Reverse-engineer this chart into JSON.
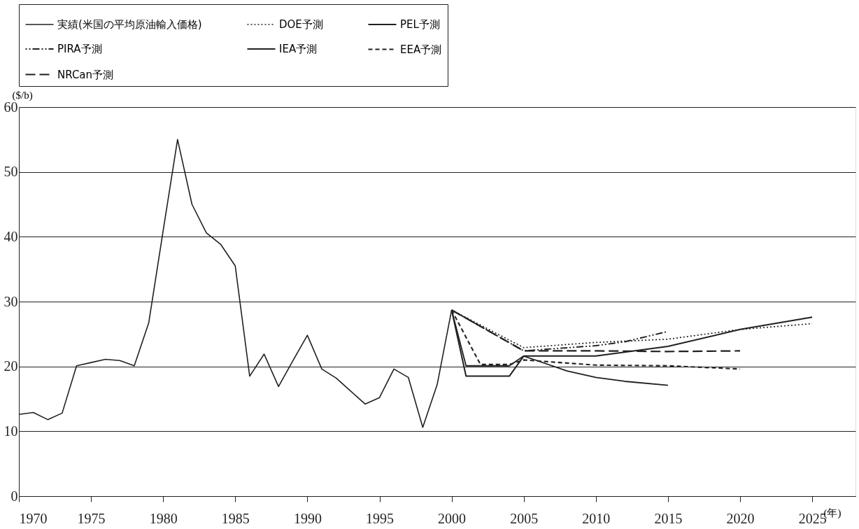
{
  "chart_data": {
    "type": "line",
    "ylabel": "($/b)",
    "xlabel": "(年)",
    "xlim": [
      1970,
      2028
    ],
    "xticks": [
      1970,
      1975,
      1980,
      1985,
      1990,
      1995,
      2000,
      2005,
      2010,
      2015,
      2020,
      2025
    ],
    "ylim": [
      0,
      60
    ],
    "yticks": [
      0,
      10,
      20,
      30,
      40,
      50,
      60
    ],
    "grid": "y",
    "legend": "top",
    "marker": "none",
    "series": [
      {
        "name": "実績(米国の平均原油輸入価格)",
        "color": "#231f20",
        "line_style": "solid",
        "x": [
          1970,
          1971,
          1972,
          1973,
          1974,
          1975,
          1976,
          1977,
          1978,
          1979,
          1980,
          1981,
          1982,
          1983,
          1984,
          1985,
          1986,
          1987,
          1988,
          1989,
          1990,
          1991,
          1992,
          1993,
          1994,
          1995,
          1996,
          1997,
          1998,
          1999,
          2000
        ],
        "values": [
          12.6,
          12.9,
          11.8,
          12.8,
          20.1,
          20.6,
          21.1,
          20.9,
          20.1,
          26.7,
          40.9,
          55.0,
          45.0,
          40.6,
          38.8,
          35.5,
          18.5,
          21.9,
          16.9,
          20.9,
          24.8,
          19.6,
          18.2,
          16.2,
          14.2,
          15.2,
          19.6,
          18.3,
          10.6,
          17.2,
          28.7
        ]
      },
      {
        "name": "DOE予測",
        "color": "#231f20",
        "line_style": "dotted",
        "x": [
          2000,
          2005,
          2010,
          2015,
          2020,
          2025
        ],
        "values": [
          28.7,
          22.9,
          23.7,
          24.2,
          25.7,
          26.6
        ]
      },
      {
        "name": "PEL予測",
        "color": "#231f20",
        "line_style": "solid",
        "x": [
          2000,
          2001,
          2004,
          2005,
          2008,
          2010,
          2012,
          2015
        ],
        "values": [
          28.7,
          20.1,
          20.1,
          21.6,
          19.3,
          18.3,
          17.7,
          17.1
        ]
      },
      {
        "name": "PIRA予測",
        "color": "#231f20",
        "line_style": "dashdot",
        "x": [
          2000,
          2005,
          2010,
          2012,
          2015
        ],
        "values": [
          28.7,
          22.4,
          23.2,
          23.8,
          25.4
        ]
      },
      {
        "name": "IEA予測",
        "color": "#231f20",
        "line_style": "solid",
        "x": [
          2000,
          2001,
          2004,
          2005,
          2010,
          2015,
          2020,
          2025
        ],
        "values": [
          28.7,
          18.5,
          18.5,
          21.6,
          21.6,
          23.1,
          25.7,
          27.6
        ]
      },
      {
        "name": "EEA予測",
        "color": "#231f20",
        "line_style": "dashed",
        "x": [
          2000,
          2002,
          2004,
          2005,
          2010,
          2015,
          2020
        ],
        "values": [
          28.7,
          20.3,
          20.3,
          21.0,
          20.2,
          20.1,
          19.6
        ]
      },
      {
        "name": "NRCan予測",
        "color": "#231f20",
        "line_style": "longdash",
        "x": [
          2000,
          2005,
          2010,
          2015,
          2020
        ],
        "values": [
          28.7,
          22.4,
          22.4,
          22.3,
          22.4
        ]
      }
    ]
  }
}
